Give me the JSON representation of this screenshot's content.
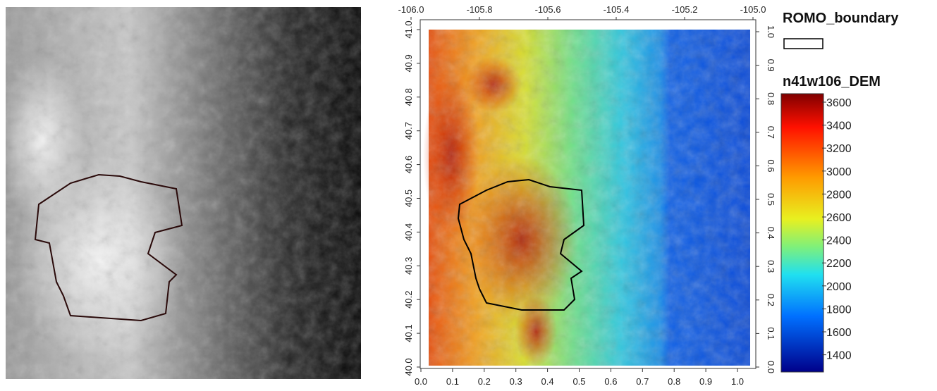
{
  "map": {
    "top_ticks": [
      "-106.0",
      "-105.8",
      "-105.6",
      "-105.4",
      "-105.2",
      "-105.0"
    ],
    "bottom_ticks": [
      "0.0",
      "0.1",
      "0.2",
      "0.3",
      "0.4",
      "0.5",
      "0.6",
      "0.7",
      "0.8",
      "0.9",
      "1.0"
    ],
    "left_ticks": [
      "40.0",
      "40.1",
      "40.2",
      "40.3",
      "40.4",
      "40.5",
      "40.6",
      "40.7",
      "40.8",
      "40.9",
      "41.0"
    ],
    "right_ticks": [
      "0.0",
      "0.1",
      "0.2",
      "0.3",
      "0.4",
      "0.5",
      "0.6",
      "0.7",
      "0.8",
      "0.9",
      "1.0"
    ]
  },
  "legend": {
    "boundary_title": "ROMO_boundary",
    "dem_title": "n41w106_DEM",
    "colorbar_labels": [
      "3600",
      "3400",
      "3200",
      "3000",
      "2800",
      "2600",
      "2400",
      "2200",
      "2000",
      "1800",
      "1600",
      "1400"
    ]
  }
}
